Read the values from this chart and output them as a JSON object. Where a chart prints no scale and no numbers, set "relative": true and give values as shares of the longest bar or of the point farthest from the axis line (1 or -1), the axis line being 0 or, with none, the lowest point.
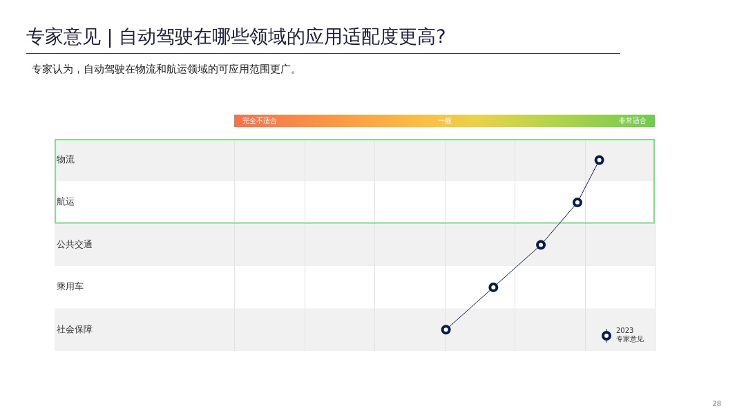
{
  "chart_data": {
    "type": "line",
    "title": "专家意见 | 自动驾驶在哪些领域的应用适配度更高?",
    "subtitle": "专家认为，自动驾驶在物流和航运领域的可应用范围更广。",
    "categories": [
      "物流",
      "航运",
      "公共交通",
      "乘用车",
      "社会保障"
    ],
    "orientation": "horizontal",
    "relative": true,
    "series": [
      {
        "name": "2023 专家意见",
        "color": "#0d1b4b",
        "values": [
          1,
          0.94,
          0.84,
          0.71,
          0.58
        ]
      }
    ],
    "marker": "circle",
    "grid": "x",
    "legend": "bottom right",
    "bands": [
      {
        "axis": "y",
        "from": "物流",
        "to": "航运"
      }
    ],
    "annotations": [
      "完全不适合",
      "一般",
      "非常适合",
      "28"
    ]
  }
}
